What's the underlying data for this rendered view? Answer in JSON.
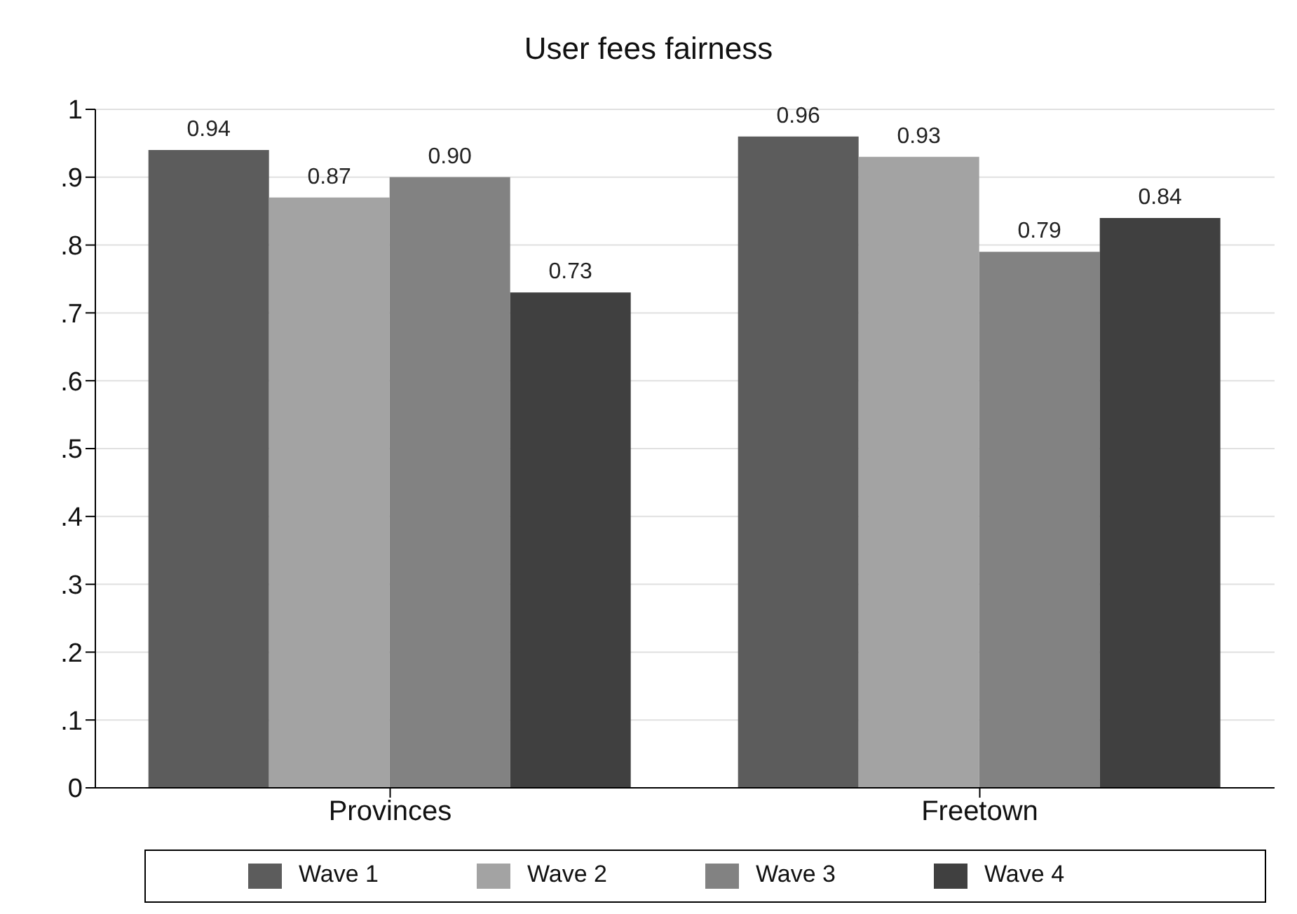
{
  "chart_data": {
    "type": "bar",
    "title": "User fees fairness",
    "categories": [
      "Provinces",
      "Freetown"
    ],
    "series": [
      {
        "name": "Wave 1",
        "color": "#5c5c5c",
        "values": [
          0.94,
          0.96
        ],
        "value_labels": [
          "0.94",
          "0.96"
        ]
      },
      {
        "name": "Wave 2",
        "color": "#a3a3a3",
        "values": [
          0.87,
          0.93
        ],
        "value_labels": [
          "0.87",
          "0.93"
        ]
      },
      {
        "name": "Wave 3",
        "color": "#828282",
        "values": [
          0.9,
          0.79
        ],
        "value_labels": [
          "0.90",
          "0.79"
        ]
      },
      {
        "name": "Wave 4",
        "color": "#404040",
        "values": [
          0.73,
          0.84
        ],
        "value_labels": [
          "0.73",
          "0.84"
        ]
      }
    ],
    "ylim": [
      0,
      1
    ],
    "yticks": [
      0,
      {
        "value": 0.1,
        "label": ".1"
      },
      {
        "value": 0.2,
        "label": ".2"
      },
      {
        "value": 0.3,
        "label": ".3"
      },
      {
        "value": 0.4,
        "label": ".4"
      },
      {
        "value": 0.5,
        "label": ".5"
      },
      {
        "value": 0.6,
        "label": ".6"
      },
      {
        "value": 0.7,
        "label": ".7"
      },
      {
        "value": 0.8,
        "label": ".8"
      },
      {
        "value": 0.9,
        "label": ".9"
      },
      1
    ],
    "grid": "y",
    "legend": "bottom"
  }
}
